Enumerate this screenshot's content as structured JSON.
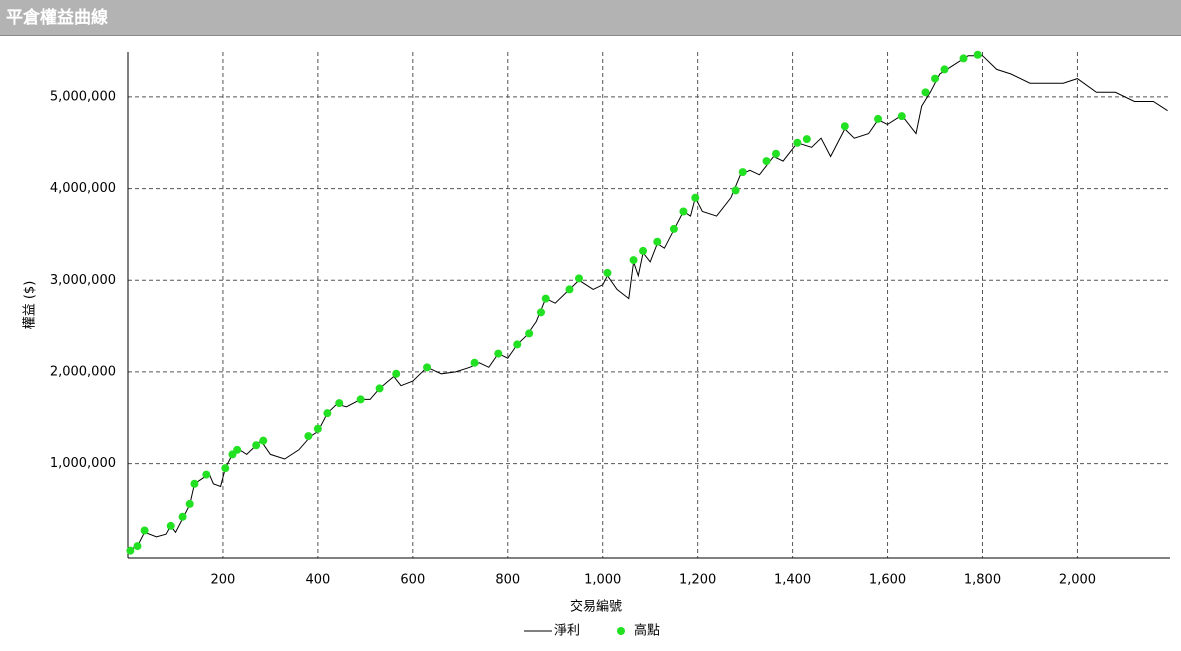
{
  "chart_data": {
    "type": "line",
    "title": "平倉權益曲線",
    "x_label": "交易編號",
    "y_label": "權益 ($)",
    "xlim": [
      0,
      2195
    ],
    "ylim": [
      -30000,
      5490000
    ],
    "xticks": [
      200,
      400,
      600,
      800,
      {
        "value": 1000,
        "label": "1,000"
      },
      {
        "value": 1200,
        "label": "1,200"
      },
      {
        "value": 1400,
        "label": "1,400"
      },
      {
        "value": 1600,
        "label": "1,600"
      },
      {
        "value": 1800,
        "label": "1,800"
      },
      {
        "value": 2000,
        "label": "2,000"
      }
    ],
    "yticks": [
      {
        "value": 1000000,
        "label": "1,000,000"
      },
      {
        "value": 2000000,
        "label": "2,000,000"
      },
      {
        "value": 3000000,
        "label": "3,000,000"
      },
      {
        "value": 4000000,
        "label": "4,000,000"
      },
      {
        "value": 5000000,
        "label": "5,000,000"
      }
    ],
    "grid": true,
    "series": [
      {
        "name": "淨利",
        "color": "#000000",
        "type": "line",
        "x": [
          0,
          20,
          35,
          60,
          80,
          90,
          100,
          115,
          130,
          140,
          160,
          170,
          180,
          195,
          205,
          220,
          235,
          250,
          280,
          300,
          330,
          360,
          385,
          400,
          420,
          440,
          460,
          490,
          510,
          530,
          560,
          575,
          600,
          630,
          660,
          690,
          720,
          740,
          760,
          780,
          800,
          820,
          840,
          860,
          880,
          900,
          930,
          950,
          980,
          1000,
          1010,
          1030,
          1055,
          1065,
          1075,
          1085,
          1100,
          1115,
          1130,
          1150,
          1170,
          1185,
          1195,
          1210,
          1240,
          1270,
          1290,
          1310,
          1330,
          1360,
          1380,
          1410,
          1440,
          1460,
          1480,
          1510,
          1530,
          1560,
          1580,
          1600,
          1630,
          1660,
          1672,
          1690,
          1710,
          1740,
          1770,
          1800,
          1830,
          1860,
          1900,
          1940,
          1970,
          2000,
          2040,
          2080,
          2120,
          2160,
          2190
        ],
        "values": [
          50000,
          100000,
          250000,
          200000,
          230000,
          320000,
          250000,
          400000,
          550000,
          780000,
          850000,
          900000,
          780000,
          750000,
          950000,
          1100000,
          1150000,
          1100000,
          1250000,
          1100000,
          1050000,
          1150000,
          1300000,
          1350000,
          1550000,
          1650000,
          1620000,
          1700000,
          1700000,
          1820000,
          1950000,
          1850000,
          1900000,
          2050000,
          1980000,
          2000000,
          2050000,
          2100000,
          2050000,
          2200000,
          2150000,
          2300000,
          2400000,
          2550000,
          2800000,
          2750000,
          2900000,
          3000000,
          2900000,
          2950000,
          3050000,
          2900000,
          2800000,
          3200000,
          3050000,
          3300000,
          3200000,
          3400000,
          3350000,
          3550000,
          3750000,
          3700000,
          3900000,
          3750000,
          3700000,
          3900000,
          4150000,
          4200000,
          4150000,
          4350000,
          4300000,
          4500000,
          4450000,
          4550000,
          4350000,
          4650000,
          4550000,
          4600000,
          4750000,
          4700000,
          4800000,
          4600000,
          4900000,
          5050000,
          5250000,
          5350000,
          5450000,
          5450000,
          5300000,
          5250000,
          5150000,
          5150000,
          5150000,
          5200000,
          5050000,
          5050000,
          4950000,
          4950000,
          4850000
        ]
      },
      {
        "name": "高點",
        "color": "#22e022",
        "type": "scatter",
        "x": [
          5,
          20,
          35,
          90,
          115,
          130,
          140,
          165,
          205,
          220,
          230,
          270,
          285,
          380,
          400,
          420,
          445,
          490,
          530,
          565,
          630,
          730,
          780,
          820,
          845,
          870,
          880,
          930,
          950,
          1010,
          1065,
          1085,
          1115,
          1150,
          1170,
          1195,
          1280,
          1295,
          1345,
          1365,
          1410,
          1430,
          1510,
          1580,
          1630,
          1680,
          1700,
          1720,
          1760,
          1790
        ],
        "values": [
          50000,
          100000,
          270000,
          320000,
          420000,
          560000,
          780000,
          880000,
          950000,
          1100000,
          1150000,
          1200000,
          1250000,
          1300000,
          1380000,
          1550000,
          1660000,
          1700000,
          1820000,
          1980000,
          2050000,
          2100000,
          2200000,
          2300000,
          2420000,
          2650000,
          2800000,
          2900000,
          3020000,
          3080000,
          3220000,
          3320000,
          3420000,
          3560000,
          3750000,
          3900000,
          3980000,
          4180000,
          4300000,
          4380000,
          4500000,
          4540000,
          4680000,
          4760000,
          4790000,
          5050000,
          5200000,
          5300000,
          5420000,
          5460000
        ]
      }
    ]
  }
}
